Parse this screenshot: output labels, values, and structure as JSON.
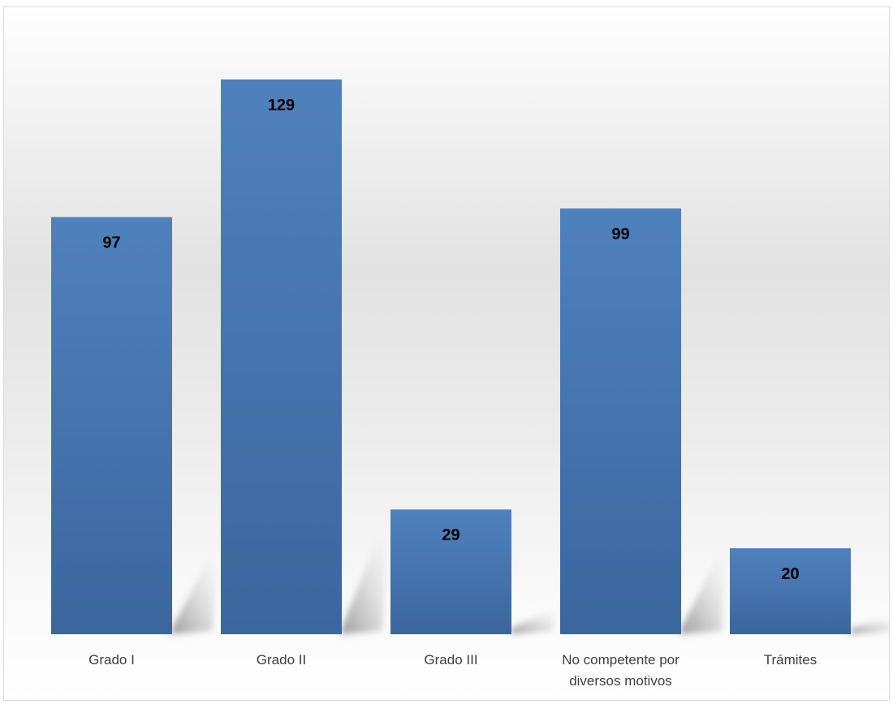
{
  "chart_data": {
    "type": "bar",
    "title": "",
    "xlabel": "",
    "ylabel": "",
    "categories": [
      [
        "Grado I"
      ],
      [
        "Grado II"
      ],
      [
        "Grado III"
      ],
      [
        "No competente por",
        "diversos motivos"
      ],
      [
        "Trámites"
      ]
    ],
    "values": [
      97,
      129,
      29,
      99,
      20
    ],
    "ylim": [
      0,
      140
    ],
    "grid": false,
    "legend": "none",
    "data_labels": true
  },
  "colors": {
    "bar_top": "#4f81bd",
    "bar_bottom": "#3b679f",
    "value_label": "#000000",
    "category_label": "#404040",
    "shadow": "#9a9a9a"
  }
}
